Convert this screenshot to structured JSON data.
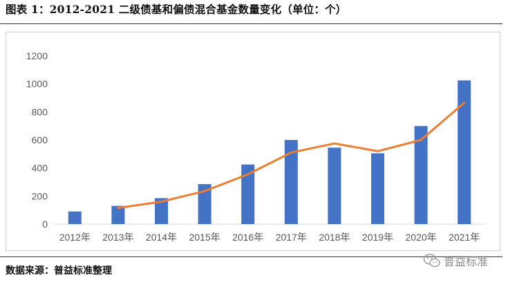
{
  "title": "图表 1：2012-2021 二级债基和偏债混合基金数量变化（单位：个）",
  "source": "数据来源：普益标准整理",
  "watermark": {
    "text": "普益标准",
    "icon": "wechat-icon"
  },
  "colors": {
    "bar": "#4472C4",
    "line": "#ED7D31",
    "axis": "#d9d9d9",
    "text": "#595959"
  },
  "chart_data": {
    "type": "bar",
    "categories": [
      "2012年",
      "2013年",
      "2014年",
      "2015年",
      "2016年",
      "2017年",
      "2018年",
      "2019年",
      "2020年",
      "2021年"
    ],
    "series": [
      {
        "type": "bar",
        "values": [
          90,
          130,
          185,
          285,
          425,
          600,
          545,
          505,
          700,
          1025
        ]
      },
      {
        "type": "line",
        "values": [
          null,
          115,
          160,
          235,
          355,
          510,
          575,
          520,
          600,
          865
        ]
      }
    ],
    "ylim": [
      0,
      1200
    ],
    "yticks": [
      0,
      200,
      400,
      600,
      800,
      1000,
      1200
    ],
    "grid": false,
    "legend": "none"
  }
}
